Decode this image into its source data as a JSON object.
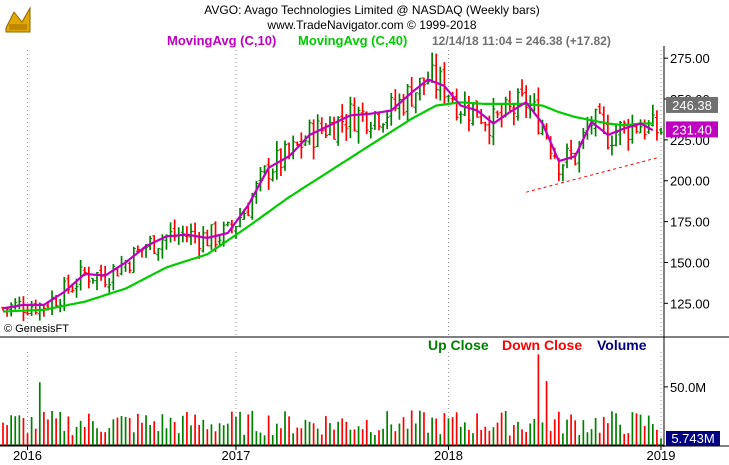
{
  "header": {
    "line1": "AVGO:  Avago Technologies Limited @ NASDAQ  (Weekly bars)",
    "line2": "www.TradeNavigator.com © 1999-2018",
    "ma10_label": "MovingAvg (C,10)",
    "ma40_label": "MovingAvg (C,40)",
    "quote": "12/14/18 11:04 = 246.38 (+17.82)"
  },
  "watermark": "© GenesisFT",
  "volume_legend": {
    "up": "Up Close",
    "down": "Down Close",
    "volume": "Volume"
  },
  "colors": {
    "up": "#008000",
    "down": "#ff0000",
    "ma10": "#c000c0",
    "ma40": "#00cc00",
    "price_tag": "#707070",
    "ma_tag": "#c000c0",
    "vol_tag": "#000080",
    "trendline": "#ff0000",
    "volume_label": "#000080"
  },
  "chart_data": [
    {
      "type": "line",
      "title": "AVGO:  Avago Technologies Limited @ NASDAQ  (Weekly bars)",
      "ylim": [
        105,
        280
      ],
      "y_ticks": [
        125,
        150,
        175,
        200,
        225,
        250,
        275
      ],
      "y_tick_labels": [
        "125.00",
        "150.00",
        "175.00",
        "200.00",
        "225.00",
        "250.00",
        "275.00"
      ],
      "x_tick_labels": [
        "2016",
        "2017",
        "2018",
        "2019"
      ],
      "x_ticks_week_index": [
        6,
        57,
        109,
        161
      ],
      "grid": "vertical-dotted",
      "last_price_tag": "246.38",
      "ma_tag": "231.40",
      "series": [
        {
          "name": "MovingAvg (C,10)",
          "x": [
            0,
            5,
            10,
            15,
            20,
            25,
            30,
            35,
            40,
            45,
            50,
            55,
            60,
            65,
            70,
            75,
            80,
            85,
            90,
            95,
            100,
            104,
            108,
            112,
            116,
            120,
            124,
            128,
            132,
            136,
            140,
            144,
            148,
            152,
            156,
            159
          ],
          "values": [
            122,
            124,
            124,
            132,
            143,
            142,
            150,
            160,
            166,
            167,
            165,
            168,
            185,
            208,
            215,
            228,
            234,
            240,
            241,
            243,
            254,
            262,
            258,
            246,
            243,
            235,
            242,
            248,
            235,
            212,
            215,
            236,
            228,
            232,
            235,
            231
          ]
        },
        {
          "name": "MovingAvg (C,40)",
          "x": [
            0,
            10,
            20,
            30,
            40,
            50,
            60,
            70,
            80,
            90,
            100,
            106,
            112,
            118,
            124,
            128,
            132,
            136,
            140,
            144,
            148,
            152,
            156,
            159
          ],
          "values": [
            120,
            121,
            126,
            134,
            147,
            155,
            172,
            190,
            206,
            222,
            238,
            246,
            248,
            247,
            247,
            247,
            246,
            242,
            239,
            237,
            235,
            234,
            235,
            235
          ]
        },
        {
          "name": "Trendline",
          "x": [
            128,
            160
          ],
          "values": [
            193,
            214
          ]
        }
      ]
    },
    {
      "type": "bar",
      "title": "Volume",
      "ylim": [
        0,
        80
      ],
      "y_ticks": [
        50
      ],
      "y_tick_labels": [
        "50.0M"
      ],
      "last_volume_tag": "5.743M",
      "volume_spikes": [
        {
          "week": 9,
          "value": 54
        },
        {
          "week": 131,
          "value": 78
        },
        {
          "week": 133,
          "value": 55
        }
      ]
    }
  ]
}
